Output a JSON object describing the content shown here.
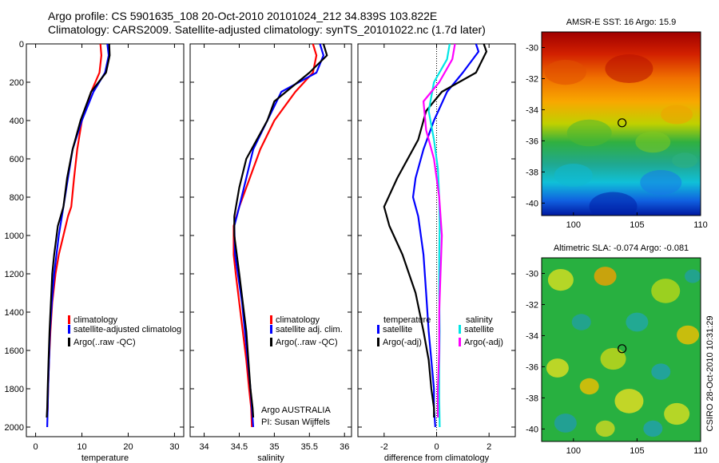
{
  "header": {
    "line1": "Argo profile: CS 5901635_108 20-Oct-2010 20101024_212 34.839S 103.822E",
    "line2": "Climatology: CARS2009. Satellite-adjusted climatology: synTS_20101022.nc (1.7d later)"
  },
  "side_text": "CSIRO 28-Oct-2010 10:31:29",
  "colors": {
    "climatology": "#ff0000",
    "satellite": "#0000ff",
    "argo": "#000000",
    "sat_salinity": "#00e5e5",
    "argo_salinity": "#ff00ff"
  },
  "chart_data": [
    {
      "id": "temperature",
      "type": "line",
      "xlabel": "temperature",
      "ylabel": "",
      "xlim": [
        -2,
        32
      ],
      "ylim": [
        0,
        2050
      ],
      "y_reversed": true,
      "xticks": [
        0,
        10,
        20,
        30
      ],
      "yticks": [
        0,
        200,
        400,
        600,
        800,
        1000,
        1200,
        1400,
        1600,
        1800,
        2000
      ],
      "legend": [
        "climatology",
        "satellite-adjusted climatolog",
        "Argo(..raw -QC)"
      ],
      "series": [
        {
          "name": "climatology",
          "color": "#ff0000",
          "x": [
            14.0,
            14.2,
            13.8,
            12.0,
            10.0,
            9.0,
            8.3,
            7.7,
            7.0,
            6.0,
            5.0,
            4.3,
            3.6,
            3.2,
            2.9,
            2.7,
            2.6,
            2.5
          ],
          "y": [
            0,
            60,
            150,
            250,
            400,
            550,
            700,
            850,
            900,
            1000,
            1100,
            1200,
            1350,
            1500,
            1650,
            1800,
            1900,
            1950
          ]
        },
        {
          "name": "satellite-adjusted climatology",
          "color": "#0000ff",
          "x": [
            15.5,
            15.8,
            15.0,
            12.5,
            10.0,
            8.0,
            7.0,
            6.0,
            5.0,
            4.5,
            4.0,
            3.5,
            3.1,
            2.9,
            2.7,
            2.6,
            2.5
          ],
          "y": [
            0,
            60,
            150,
            250,
            400,
            550,
            700,
            850,
            1000,
            1100,
            1200,
            1350,
            1500,
            1650,
            1800,
            1900,
            2000
          ]
        },
        {
          "name": "Argo(..raw -QC)",
          "color": "#000000",
          "x": [
            15.9,
            16.0,
            15.2,
            12.0,
            9.7,
            8.0,
            6.8,
            6.0,
            4.8,
            4.0,
            3.6,
            3.3,
            3.0,
            2.8,
            2.6,
            2.5,
            2.4
          ],
          "y": [
            0,
            60,
            150,
            250,
            400,
            550,
            700,
            850,
            950,
            1100,
            1200,
            1350,
            1500,
            1650,
            1800,
            1900,
            1950
          ]
        }
      ]
    },
    {
      "id": "salinity",
      "type": "line",
      "xlabel": "salinity",
      "ylabel": "",
      "xlim": [
        33.8,
        36.1
      ],
      "ylim": [
        0,
        2050
      ],
      "y_reversed": true,
      "xticks": [
        34,
        34.5,
        35,
        35.5,
        36
      ],
      "xticklabels": [
        "34",
        "34.5",
        "35",
        "35.5",
        "36"
      ],
      "legend": [
        "climatology",
        "satellite adj. clim.",
        "Argo(..raw -QC)"
      ],
      "annotation": [
        "Argo AUSTRALIA",
        "PI: Susan Wijffels"
      ],
      "series": [
        {
          "name": "climatology",
          "color": "#ff0000",
          "x": [
            35.55,
            35.6,
            35.55,
            35.3,
            35.0,
            34.8,
            34.65,
            34.5,
            34.42,
            34.42,
            34.45,
            34.5,
            34.55,
            34.6,
            34.64,
            34.67,
            34.68
          ],
          "y": [
            0,
            60,
            150,
            250,
            400,
            550,
            700,
            850,
            950,
            1100,
            1200,
            1350,
            1500,
            1650,
            1800,
            1900,
            2000
          ]
        },
        {
          "name": "satellite adj. clim.",
          "color": "#0000ff",
          "x": [
            35.65,
            35.7,
            35.6,
            35.1,
            34.9,
            34.7,
            34.6,
            34.5,
            34.43,
            34.44,
            34.48,
            34.54,
            34.58,
            34.62,
            34.66,
            34.68,
            34.7
          ],
          "y": [
            0,
            60,
            150,
            250,
            400,
            550,
            700,
            850,
            950,
            1100,
            1200,
            1350,
            1500,
            1650,
            1800,
            1900,
            2000
          ]
        },
        {
          "name": "Argo(..raw -QC)",
          "color": "#000000",
          "x": [
            35.7,
            35.75,
            35.5,
            35.0,
            34.9,
            34.6,
            34.5,
            34.43,
            34.43,
            34.5,
            34.55,
            34.6,
            34.63,
            34.66,
            34.69,
            34.7
          ],
          "y": [
            0,
            60,
            150,
            300,
            400,
            600,
            750,
            900,
            1000,
            1200,
            1350,
            1500,
            1650,
            1800,
            1900,
            1950
          ]
        }
      ]
    },
    {
      "id": "difference",
      "type": "line",
      "xlabel": "difference from climatology",
      "ylabel": "",
      "xlim": [
        -3,
        3
      ],
      "ylim": [
        0,
        2050
      ],
      "y_reversed": true,
      "xticks": [
        -2,
        0,
        2
      ],
      "legend_left_title": "temperature",
      "legend_right_title": "salinity",
      "legend": [
        "satellite",
        "Argo(-adj)",
        "satellite",
        "Argo(-adj)"
      ],
      "series": [
        {
          "name": "temperature satellite",
          "color": "#0000ff",
          "x": [
            1.5,
            1.6,
            1.0,
            0.4,
            -0.1,
            -0.5,
            -0.8,
            -0.9,
            -0.7,
            -0.5,
            -0.4,
            -0.3,
            -0.2,
            -0.1,
            -0.1,
            -0.05
          ],
          "y": [
            0,
            40,
            150,
            250,
            400,
            550,
            700,
            800,
            900,
            1100,
            1300,
            1500,
            1650,
            1800,
            1900,
            2000
          ]
        },
        {
          "name": "temperature Argo(-adj)",
          "color": "#000000",
          "x": [
            1.8,
            1.9,
            1.5,
            0.2,
            -0.4,
            -0.7,
            -1.5,
            -2.0,
            -1.8,
            -1.3,
            -0.8,
            -0.5,
            -0.3,
            -0.2,
            -0.1,
            -0.1
          ],
          "y": [
            0,
            40,
            150,
            250,
            350,
            500,
            700,
            850,
            950,
            1100,
            1300,
            1500,
            1650,
            1800,
            1900,
            1950
          ]
        },
        {
          "name": "salinity satellite",
          "color": "#00e5e5",
          "x": [
            0.5,
            0.4,
            -0.1,
            -0.3,
            -0.1,
            0.05,
            0.1,
            0.12,
            0.1,
            0.1,
            0.12,
            0.1,
            0.1,
            0.12
          ],
          "y": [
            0,
            80,
            200,
            350,
            500,
            650,
            800,
            950,
            1100,
            1300,
            1500,
            1700,
            1850,
            2000
          ]
        },
        {
          "name": "salinity Argo(-adj)",
          "color": "#ff00ff",
          "x": [
            0.7,
            0.6,
            0.1,
            -0.5,
            -0.4,
            -0.1,
            0.1,
            0.2,
            0.15,
            0.1,
            0.1,
            0.05,
            0.05,
            0.05
          ],
          "y": [
            0,
            80,
            200,
            300,
            450,
            600,
            800,
            1000,
            1200,
            1400,
            1600,
            1800,
            1900,
            1950
          ]
        }
      ]
    },
    {
      "id": "sst_map",
      "type": "heatmap",
      "title": "AMSR-E SST: 16 Argo: 15.9",
      "xlim": [
        97.5,
        110
      ],
      "ylim": [
        -40.8,
        -29
      ],
      "xticks": [
        100,
        105,
        110
      ],
      "yticks": [
        -30,
        -32,
        -34,
        -36,
        -38,
        -40
      ],
      "marker": {
        "lon": 103.822,
        "lat": -34.839
      }
    },
    {
      "id": "sla_map",
      "type": "heatmap",
      "title": "Altimetric SLA: -0.074 Argo: -0.081",
      "xlim": [
        97.5,
        110
      ],
      "ylim": [
        -40.8,
        -29
      ],
      "xticks": [
        100,
        105,
        110
      ],
      "yticks": [
        -30,
        -32,
        -34,
        -36,
        -38,
        -40
      ],
      "marker": {
        "lon": 103.822,
        "lat": -34.839
      }
    }
  ]
}
